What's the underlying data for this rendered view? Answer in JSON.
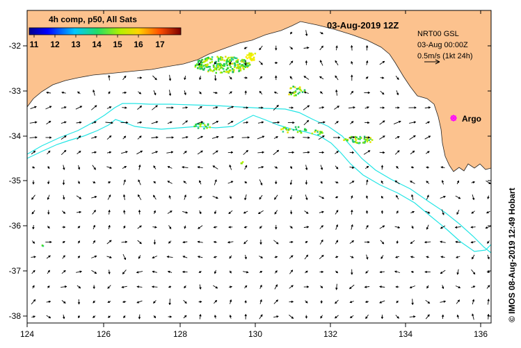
{
  "map": {
    "date_title": "03-Aug-2019 12Z",
    "legend_title": "4h comp, p50, All Sats",
    "colorbar_ticks": [
      "11",
      "12",
      "13",
      "14",
      "15",
      "16",
      "17"
    ],
    "current_info": [
      "NRT00 GSL",
      "03-Aug 00:00Z",
      "0.5m/s (1kt 24h)"
    ],
    "marker_label": "Argo",
    "marker_color": "#ff00ff",
    "credit": "© IMOS 08-Aug-2019 12:49 Hobart",
    "x_ticks": [
      "124",
      "126",
      "128",
      "130",
      "132",
      "134",
      "136"
    ],
    "y_ticks": [
      "-32",
      "-33",
      "-34",
      "-35",
      "-36",
      "-37",
      "-38"
    ],
    "colors": {
      "land": "#fcc28e",
      "ocean": "#ffffff",
      "contours": "#22e5e5",
      "arrows": "#000000"
    },
    "icons": [
      "current-vector-arrow",
      "argo-float-marker"
    ]
  }
}
